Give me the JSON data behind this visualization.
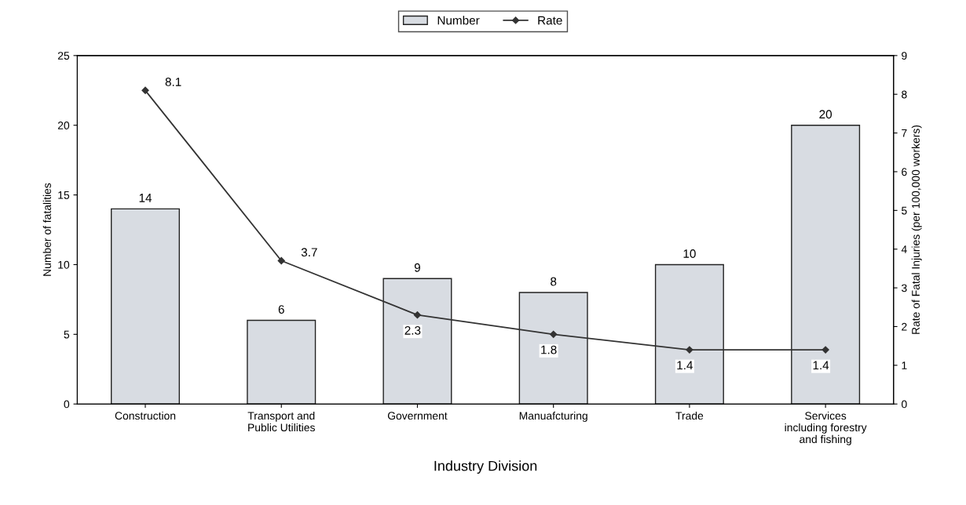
{
  "chart_data": {
    "type": "bar",
    "xlabel": "Industry Division",
    "ylabel": "Number of fatalities",
    "y2label": "Rate of Fatal Injuries (per 100,000 workers)",
    "categories": [
      "Construction",
      "Transport and\nPublic Utilities",
      "Government",
      "Manuafcturing",
      "Trade",
      "Services\nincluding forestry\nand fishing"
    ],
    "series": [
      {
        "name": "Number",
        "color": "#d8dce2",
        "values": [
          14,
          6,
          9,
          8,
          10,
          20
        ]
      },
      {
        "name": "Rate",
        "type": "line",
        "axis": "y2",
        "color": "#333333",
        "values": [
          8.1,
          3.7,
          2.3,
          1.8,
          1.4,
          1.4
        ]
      }
    ],
    "ylim": [
      0,
      25
    ],
    "yticks": [
      0,
      5,
      10,
      15,
      20,
      25
    ],
    "y2lim": [
      0,
      9
    ],
    "y2ticks": [
      0,
      1,
      2,
      3,
      4,
      5,
      6,
      7,
      8,
      9
    ],
    "data_labels": true,
    "legend": "top",
    "marker": "diamond",
    "line_style": "solid",
    "grid": false
  }
}
